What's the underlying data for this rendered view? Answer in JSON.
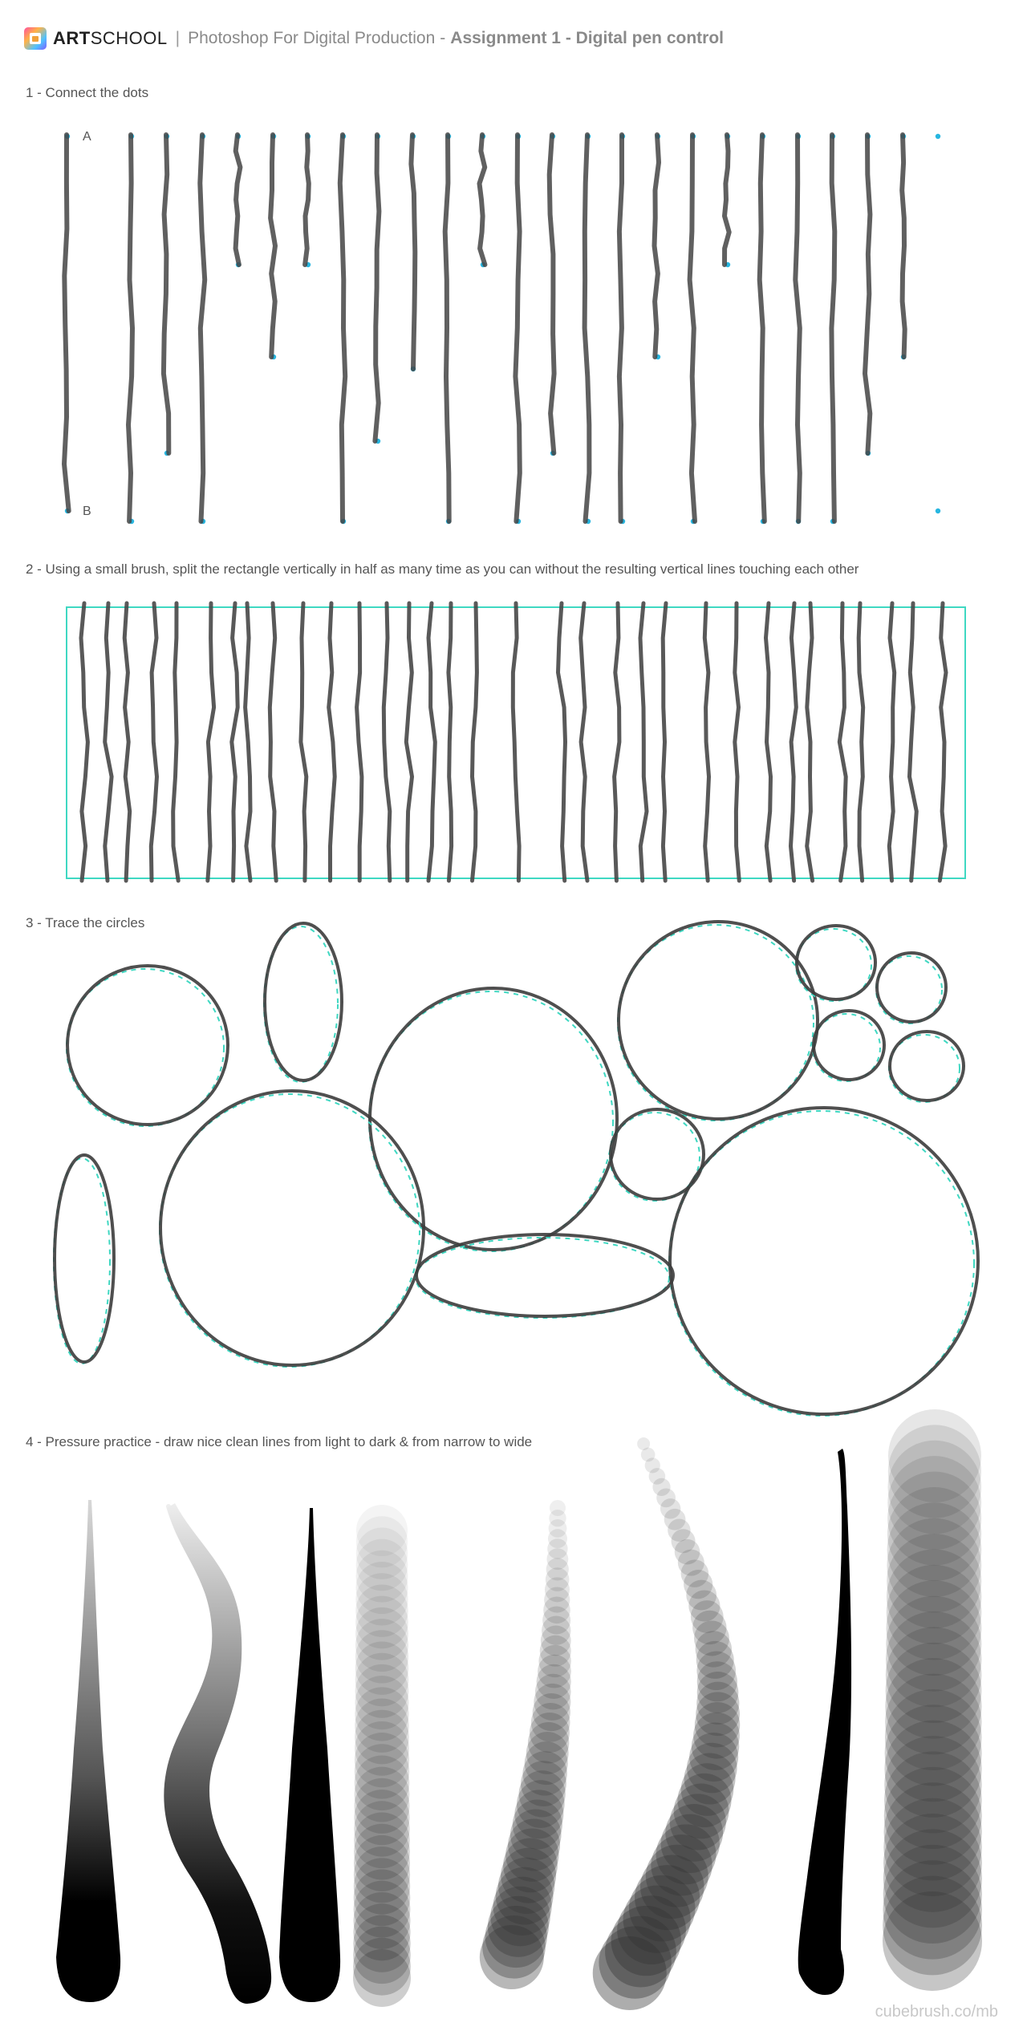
{
  "header": {
    "brand_bold": "ART",
    "brand_light": "SCHOOL",
    "separator": "|",
    "course": "Photoshop For Digital Production",
    "dash": "-",
    "assignment": "Assignment 1 - Digital pen control"
  },
  "sections": [
    {
      "label": "1 - Connect the dots",
      "point_a": "A",
      "point_b": "B"
    },
    {
      "label": "2 - Using a small brush, split the rectangle vertically in half as many time as you can without the resulting vertical lines touching each other"
    },
    {
      "label": "3 - Trace the circles"
    },
    {
      "label": "4 - Pressure practice - draw nice clean lines from light to dark & from narrow to wide"
    }
  ],
  "footer": {
    "text": "cubebrush.co/mb"
  },
  "colors": {
    "accent": "#3fd8c2",
    "dot": "#27b6e0",
    "stroke": "#3a3a3a"
  }
}
